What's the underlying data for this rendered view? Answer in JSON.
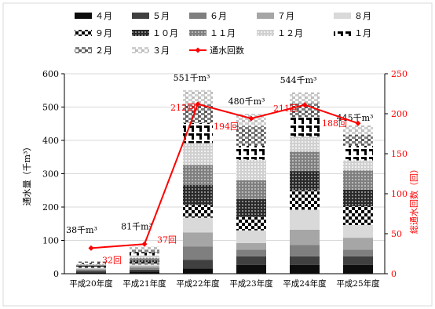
{
  "chart_data": {
    "type": "bar",
    "stacked": true,
    "categories": [
      "平成20年度",
      "平成21年度",
      "平成22年度",
      "平成23年度",
      "平成24年度",
      "平成25年度"
    ],
    "series": [
      {
        "name": "４月",
        "values": [
          4,
          6,
          16,
          26,
          26,
          26
        ],
        "pattern": "black"
      },
      {
        "name": "５月",
        "values": [
          4,
          6,
          26,
          26,
          26,
          26
        ],
        "pattern": "dark"
      },
      {
        "name": "６月",
        "values": [
          4,
          6,
          40,
          20,
          34,
          20
        ],
        "pattern": "mid"
      },
      {
        "name": "７月",
        "values": [
          3,
          5,
          42,
          20,
          46,
          36
        ],
        "pattern": "light"
      },
      {
        "name": "８月",
        "values": [
          3,
          5,
          44,
          38,
          60,
          38
        ],
        "pattern": "vlight"
      },
      {
        "name": "９月",
        "values": [
          3,
          6,
          38,
          40,
          58,
          56
        ],
        "pattern": "bigcheck"
      },
      {
        "name": "１０月",
        "values": [
          3,
          6,
          60,
          54,
          58,
          50
        ],
        "pattern": "darkdots"
      },
      {
        "name": "１１月",
        "values": [
          3,
          7,
          60,
          56,
          58,
          58
        ],
        "pattern": "greydots"
      },
      {
        "name": "１２月",
        "values": [
          3,
          8,
          66,
          62,
          46,
          30
        ],
        "pattern": "lightdots"
      },
      {
        "name": "１月",
        "values": [
          3,
          9,
          60,
          42,
          58,
          44
        ],
        "pattern": "steps"
      },
      {
        "name": "２月",
        "values": [
          3,
          8,
          56,
          58,
          42,
          33
        ],
        "pattern": "blocks"
      },
      {
        "name": "３月",
        "values": [
          2,
          9,
          43,
          38,
          32,
          28
        ],
        "pattern": "lightblocks"
      }
    ],
    "totals": [
      38,
      81,
      551,
      480,
      544,
      445
    ],
    "total_labels": [
      "38千m³",
      "81千m³",
      "551千m³",
      "480千m³",
      "544千m³",
      "445千m³"
    ],
    "line_series": {
      "name": "通水回数",
      "values": [
        32,
        37,
        212,
        194,
        211,
        188
      ],
      "labels": [
        "32回",
        "37回",
        "212回",
        "194回",
        "211回",
        "188回"
      ],
      "color": "#ff0000"
    },
    "ylabel_left": "通水量（千m³）",
    "ylabel_right": "総通水回数（回）",
    "ylim_left": [
      0,
      600
    ],
    "yticks_left": [
      "0",
      "100",
      "200",
      "300",
      "400",
      "500",
      "600"
    ],
    "ylim_right": [
      0,
      250
    ],
    "yticks_right": [
      "0",
      "50",
      "100",
      "150",
      "200",
      "250"
    ],
    "legend_position": "top"
  }
}
